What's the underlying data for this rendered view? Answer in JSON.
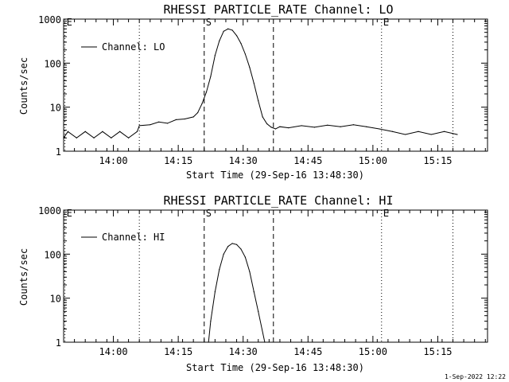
{
  "chart_data": [
    {
      "type": "line",
      "title": "RHESSI PARTICLE_RATE Channel: LO",
      "xlabel": "Start Time (29-Sep-16 13:48:30)",
      "ylabel": "Counts/sec",
      "yscale": "log",
      "ylim": [
        1,
        1000
      ],
      "xlim_minutes_after_start": [
        0,
        98
      ],
      "xticks": [
        "14:00",
        "14:15",
        "14:30",
        "14:45",
        "15:00",
        "15:15"
      ],
      "xtick_minutes": [
        11.5,
        26.5,
        41.5,
        56.5,
        71.5,
        86.5
      ],
      "yticks": [
        "1",
        "10",
        "100",
        "1000"
      ],
      "ytick_values": [
        1,
        10,
        100,
        1000
      ],
      "legend": {
        "label": "Channel: LO",
        "position": "top-left"
      },
      "markers": [
        {
          "label": "S",
          "minute": 32.5,
          "style": "dashed"
        },
        {
          "label": "",
          "minute": 48.5,
          "style": "dashed"
        },
        {
          "label": "E",
          "minute": 73.5,
          "style": "dotted"
        },
        {
          "label": "",
          "minute": 17.5,
          "style": "dotted"
        },
        {
          "label": "",
          "minute": 90.0,
          "style": "dotted"
        },
        {
          "label": "E",
          "minute": 0.3,
          "style": "dotted"
        }
      ],
      "series": [
        {
          "name": "Channel: LO",
          "x": [
            0,
            1,
            3,
            5,
            7,
            9,
            11,
            13,
            15,
            17,
            17.5,
            20,
            22,
            24,
            26,
            28,
            30,
            31,
            32,
            33,
            34,
            35,
            36,
            37,
            38,
            39,
            40,
            41,
            42,
            43,
            44,
            45,
            46,
            47,
            48,
            49,
            50,
            52,
            55,
            58,
            61,
            64,
            67,
            70,
            73,
            76,
            79,
            82,
            85,
            88,
            91
          ],
          "y": [
            2,
            2.8,
            2,
            2.8,
            2,
            2.8,
            2,
            2.8,
            2,
            2.8,
            3.8,
            4.0,
            4.6,
            4.3,
            5.2,
            5.4,
            6.0,
            7.5,
            12,
            22,
            50,
            150,
            320,
            530,
            600,
            560,
            420,
            280,
            160,
            80,
            35,
            14,
            6,
            4.2,
            3.5,
            3.2,
            3.6,
            3.4,
            3.8,
            3.5,
            3.9,
            3.6,
            4.0,
            3.6,
            3.2,
            2.8,
            2.4,
            2.8,
            2.4,
            2.8,
            2.4
          ]
        }
      ]
    },
    {
      "type": "line",
      "title": "RHESSI PARTICLE_RATE Channel: HI",
      "xlabel": "Start Time (29-Sep-16 13:48:30)",
      "ylabel": "Counts/sec",
      "yscale": "log",
      "ylim": [
        1,
        1000
      ],
      "xlim_minutes_after_start": [
        0,
        98
      ],
      "xticks": [
        "14:00",
        "14:15",
        "14:30",
        "14:45",
        "15:00",
        "15:15"
      ],
      "xtick_minutes": [
        11.5,
        26.5,
        41.5,
        56.5,
        71.5,
        86.5
      ],
      "yticks": [
        "1",
        "10",
        "100",
        "1000"
      ],
      "ytick_values": [
        1,
        10,
        100,
        1000
      ],
      "legend": {
        "label": "Channel: HI",
        "position": "top-left"
      },
      "markers": [
        {
          "label": "S",
          "minute": 32.5,
          "style": "dashed"
        },
        {
          "label": "",
          "minute": 48.5,
          "style": "dashed"
        },
        {
          "label": "E",
          "minute": 73.5,
          "style": "dotted"
        },
        {
          "label": "",
          "minute": 17.5,
          "style": "dotted"
        },
        {
          "label": "",
          "minute": 90.0,
          "style": "dotted"
        },
        {
          "label": "E",
          "minute": 0.3,
          "style": "dotted"
        }
      ],
      "series": [
        {
          "name": "Channel: HI",
          "x": [
            33.5,
            34,
            35,
            36,
            37,
            38,
            39,
            40,
            41,
            42,
            43,
            44,
            45,
            46.5
          ],
          "y": [
            1,
            3,
            14,
            45,
            100,
            150,
            175,
            165,
            130,
            85,
            40,
            14,
            5,
            1
          ]
        }
      ]
    }
  ],
  "footer_timestamp": "1-Sep-2022 12:22"
}
